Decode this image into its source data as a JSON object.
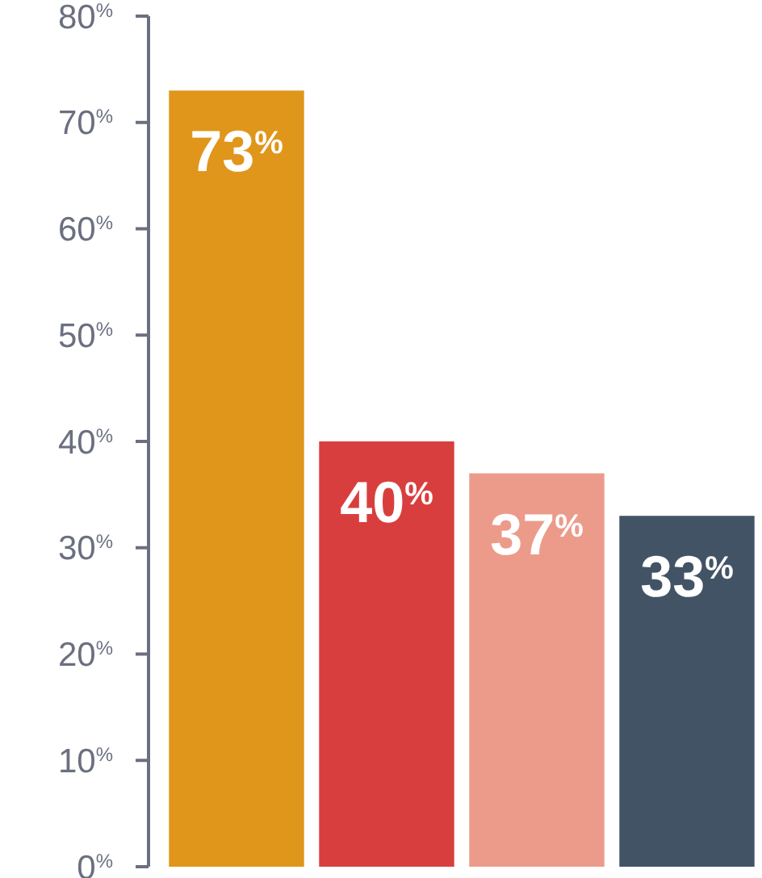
{
  "chart_data": {
    "type": "bar",
    "categories": [
      null,
      null,
      null,
      null
    ],
    "values": [
      73,
      40,
      37,
      33
    ],
    "colors": [
      "#e0961a",
      "#d93e3e",
      "#ec9b8b",
      "#435366"
    ],
    "value_labels": [
      "73$^{%}$",
      "40$^{%}$",
      "37$^{%}$",
      "33$^{%}$"
    ],
    "ylim": [
      0,
      80
    ],
    "yticks": [
      {
        "value": 0,
        "label": "0$^{%}$"
      },
      {
        "value": 10,
        "label": "10$^{%}$"
      },
      {
        "value": 20,
        "label": "20$^{%}$"
      },
      {
        "value": 30,
        "label": "30$^{%}$"
      },
      {
        "value": 40,
        "label": "40$^{%}$"
      },
      {
        "value": 50,
        "label": "50$^{%}$"
      },
      {
        "value": 60,
        "label": "60$^{%}$"
      },
      {
        "value": 70,
        "label": "70$^{%}$"
      },
      {
        "value": 80,
        "label": "80$^{%}$"
      }
    ],
    "tick_labels": "y",
    "grid": false
  }
}
